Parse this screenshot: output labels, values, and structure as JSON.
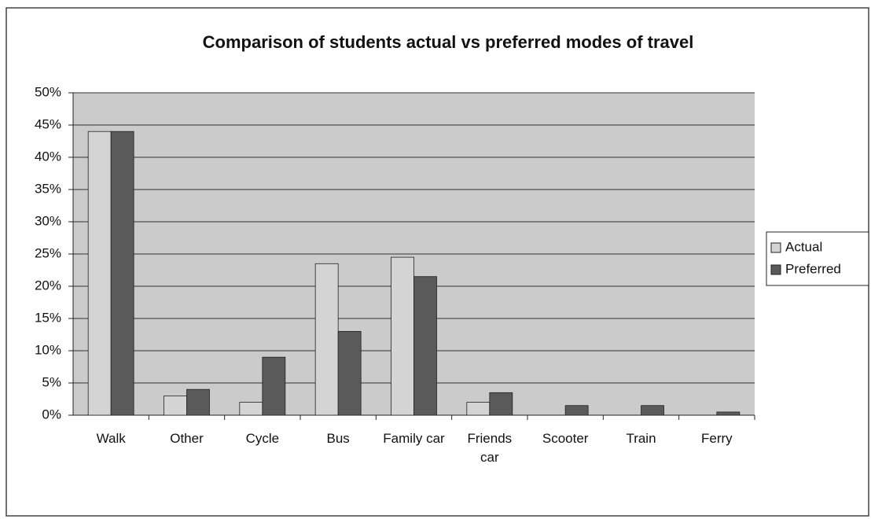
{
  "chart_data": {
    "type": "bar",
    "title": "Comparison of students actual vs preferred modes of travel",
    "categories": [
      "Walk",
      "Other",
      "Cycle",
      "Bus",
      "Family car",
      "Friends car",
      "Scooter",
      "Train",
      "Ferry"
    ],
    "series": [
      {
        "name": "Actual",
        "color": "#d4d4d4",
        "values": [
          44,
          3,
          2,
          23.5,
          24.5,
          2,
          0,
          0,
          0
        ]
      },
      {
        "name": "Preferred",
        "color": "#5a5a5a",
        "values": [
          44,
          4,
          9,
          13,
          21.5,
          3.5,
          1.5,
          1.5,
          0.5
        ]
      }
    ],
    "ylim": [
      0,
      50
    ],
    "yticks": [
      {
        "value": 0,
        "label": "0%"
      },
      {
        "value": 5,
        "label": "5%"
      },
      {
        "value": 10,
        "label": "10%"
      },
      {
        "value": 15,
        "label": "15%"
      },
      {
        "value": 20,
        "label": "20%"
      },
      {
        "value": 25,
        "label": "25%"
      },
      {
        "value": 30,
        "label": "30%"
      },
      {
        "value": 35,
        "label": "35%"
      },
      {
        "value": 40,
        "label": "40%"
      },
      {
        "value": 45,
        "label": "45%"
      },
      {
        "value": 50,
        "label": "50%"
      }
    ],
    "grid": true,
    "legend": "right"
  }
}
